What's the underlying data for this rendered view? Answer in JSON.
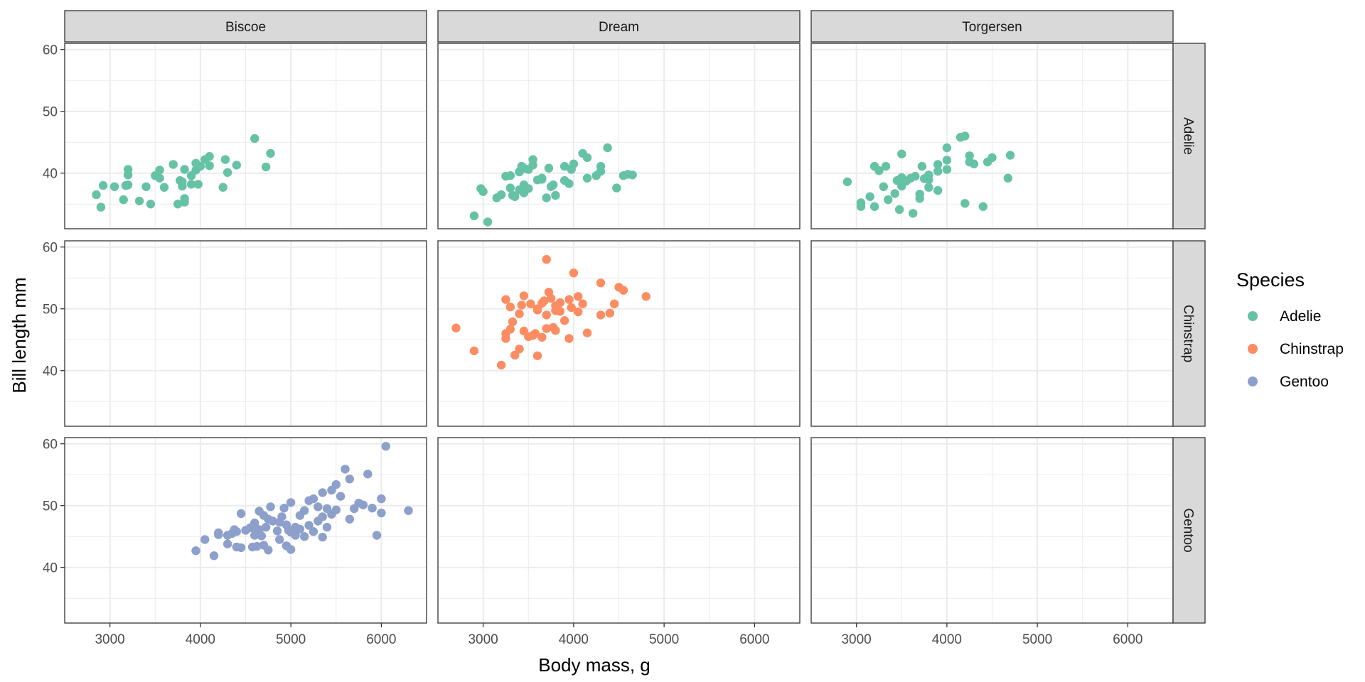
{
  "chart_data": {
    "type": "scatter",
    "title": "",
    "xlabel": "Body mass, g",
    "ylabel": "Bill length mm",
    "xlim": [
      2500,
      6500
    ],
    "ylim": [
      31,
      61
    ],
    "x_ticks": [
      3000,
      4000,
      5000,
      6000
    ],
    "y_ticks": [
      40,
      50,
      60
    ],
    "grid": true,
    "facet_columns": [
      "Biscoe",
      "Dream",
      "Torgersen"
    ],
    "facet_rows": [
      "Adelie",
      "Chinstrap",
      "Gentoo"
    ],
    "legend": {
      "title": "Species",
      "position": "right",
      "entries": [
        {
          "label": "Adelie",
          "color": "#66c2a5"
        },
        {
          "label": "Chinstrap",
          "color": "#fc8d62"
        },
        {
          "label": "Gentoo",
          "color": "#8da0cb"
        }
      ]
    },
    "panels": [
      {
        "island": "Biscoe",
        "species": "Adelie",
        "points": [
          [
            2850,
            36.5
          ],
          [
            2900,
            34.5
          ],
          [
            2925,
            38.0
          ],
          [
            3050,
            37.8
          ],
          [
            3150,
            35.7
          ],
          [
            3175,
            38.0
          ],
          [
            3200,
            40.6
          ],
          [
            3200,
            39.7
          ],
          [
            3200,
            38.1
          ],
          [
            3325,
            35.5
          ],
          [
            3400,
            37.8
          ],
          [
            3450,
            35.0
          ],
          [
            3500,
            39.6
          ],
          [
            3550,
            40.5
          ],
          [
            3550,
            39.2
          ],
          [
            3600,
            37.7
          ],
          [
            3700,
            41.4
          ],
          [
            3750,
            35.0
          ],
          [
            3775,
            38.8
          ],
          [
            3800,
            38.6
          ],
          [
            3800,
            37.9
          ],
          [
            3825,
            35.3
          ],
          [
            3825,
            35.9
          ],
          [
            3825,
            40.6
          ],
          [
            3900,
            38.2
          ],
          [
            3900,
            39.6
          ],
          [
            3950,
            41.6
          ],
          [
            3950,
            40.5
          ],
          [
            3975,
            38.2
          ],
          [
            4000,
            41.1
          ],
          [
            4050,
            42.2
          ],
          [
            4100,
            42.7
          ],
          [
            4100,
            41.2
          ],
          [
            4250,
            37.7
          ],
          [
            4275,
            42.2
          ],
          [
            4300,
            40.1
          ],
          [
            4400,
            41.3
          ],
          [
            4600,
            45.6
          ],
          [
            4725,
            41.0
          ],
          [
            4775,
            43.2
          ]
        ]
      },
      {
        "island": "Dream",
        "species": "Adelie",
        "points": [
          [
            2900,
            33.1
          ],
          [
            2975,
            37.5
          ],
          [
            3000,
            37.0
          ],
          [
            3050,
            32.1
          ],
          [
            3150,
            36.0
          ],
          [
            3200,
            36.5
          ],
          [
            3250,
            39.5
          ],
          [
            3300,
            37.6
          ],
          [
            3300,
            39.6
          ],
          [
            3325,
            36.4
          ],
          [
            3350,
            36.2
          ],
          [
            3400,
            37.3
          ],
          [
            3400,
            40.2
          ],
          [
            3425,
            41.1
          ],
          [
            3450,
            40.8
          ],
          [
            3450,
            38.1
          ],
          [
            3450,
            36.8
          ],
          [
            3500,
            40.6
          ],
          [
            3500,
            37.5
          ],
          [
            3550,
            42.2
          ],
          [
            3550,
            41.3
          ],
          [
            3600,
            38.9
          ],
          [
            3650,
            39.2
          ],
          [
            3700,
            36.0
          ],
          [
            3725,
            40.8
          ],
          [
            3750,
            37.8
          ],
          [
            3800,
            36.4
          ],
          [
            3900,
            38.8
          ],
          [
            3900,
            41.1
          ],
          [
            3950,
            38.3
          ],
          [
            3975,
            40.6
          ],
          [
            4000,
            41.5
          ],
          [
            4100,
            43.2
          ],
          [
            4150,
            42.5
          ],
          [
            4150,
            39.2
          ],
          [
            4250,
            39.6
          ],
          [
            4300,
            41.1
          ],
          [
            4300,
            40.3
          ],
          [
            4375,
            44.1
          ],
          [
            4475,
            37.6
          ],
          [
            4550,
            39.6
          ],
          [
            4600,
            39.8
          ],
          [
            4650,
            39.7
          ],
          [
            3650,
            39.0
          ],
          [
            3775,
            38.1
          ]
        ]
      },
      {
        "island": "Torgersen",
        "species": "Adelie",
        "points": [
          [
            2900,
            38.6
          ],
          [
            3050,
            34.6
          ],
          [
            3050,
            35.2
          ],
          [
            3150,
            36.2
          ],
          [
            3200,
            34.6
          ],
          [
            3200,
            41.1
          ],
          [
            3250,
            40.4
          ],
          [
            3300,
            37.8
          ],
          [
            3325,
            41.1
          ],
          [
            3350,
            35.7
          ],
          [
            3425,
            36.7
          ],
          [
            3450,
            38.8
          ],
          [
            3475,
            34.1
          ],
          [
            3500,
            43.1
          ],
          [
            3500,
            37.9
          ],
          [
            3500,
            39.3
          ],
          [
            3550,
            38.7
          ],
          [
            3600,
            39.2
          ],
          [
            3625,
            33.5
          ],
          [
            3650,
            39.5
          ],
          [
            3700,
            35.9
          ],
          [
            3700,
            36.6
          ],
          [
            3725,
            41.1
          ],
          [
            3750,
            39.1
          ],
          [
            3800,
            38.9
          ],
          [
            3800,
            39.7
          ],
          [
            3800,
            37.7
          ],
          [
            3900,
            40.3
          ],
          [
            3900,
            41.4
          ],
          [
            3900,
            37.2
          ],
          [
            4000,
            44.1
          ],
          [
            4000,
            40.6
          ],
          [
            4000,
            42.1
          ],
          [
            4150,
            45.8
          ],
          [
            4200,
            46.0
          ],
          [
            4200,
            35.1
          ],
          [
            4250,
            42.8
          ],
          [
            4250,
            41.8
          ],
          [
            4300,
            41.5
          ],
          [
            4400,
            34.6
          ],
          [
            4450,
            41.8
          ],
          [
            4500,
            42.5
          ],
          [
            4675,
            39.2
          ],
          [
            4700,
            42.9
          ]
        ]
      },
      {
        "island": "Dream",
        "species": "Chinstrap",
        "points": [
          [
            2700,
            46.9
          ],
          [
            2900,
            43.2
          ],
          [
            3200,
            40.9
          ],
          [
            3250,
            45.2
          ],
          [
            3250,
            46.0
          ],
          [
            3250,
            51.5
          ],
          [
            3300,
            50.3
          ],
          [
            3300,
            46.7
          ],
          [
            3325,
            47.9
          ],
          [
            3350,
            42.5
          ],
          [
            3400,
            43.5
          ],
          [
            3400,
            49.2
          ],
          [
            3425,
            50.6
          ],
          [
            3450,
            52.1
          ],
          [
            3450,
            46.4
          ],
          [
            3500,
            45.5
          ],
          [
            3525,
            50.8
          ],
          [
            3550,
            45.7
          ],
          [
            3575,
            46.0
          ],
          [
            3600,
            42.4
          ],
          [
            3600,
            49.8
          ],
          [
            3650,
            50.9
          ],
          [
            3650,
            45.4
          ],
          [
            3675,
            51.3
          ],
          [
            3700,
            46.8
          ],
          [
            3700,
            58.0
          ],
          [
            3700,
            49.0
          ],
          [
            3725,
            52.7
          ],
          [
            3750,
            51.7
          ],
          [
            3775,
            47.0
          ],
          [
            3800,
            46.5
          ],
          [
            3800,
            50.5
          ],
          [
            3800,
            49.7
          ],
          [
            3850,
            51.0
          ],
          [
            3900,
            48.1
          ],
          [
            3950,
            45.2
          ],
          [
            3950,
            51.5
          ],
          [
            3975,
            50.2
          ],
          [
            4000,
            55.8
          ],
          [
            4050,
            52.0
          ],
          [
            4050,
            49.5
          ],
          [
            4100,
            50.8
          ],
          [
            4150,
            46.1
          ],
          [
            4300,
            49.0
          ],
          [
            4300,
            54.2
          ],
          [
            4400,
            49.3
          ],
          [
            4450,
            50.8
          ],
          [
            4500,
            53.5
          ],
          [
            4550,
            53.0
          ],
          [
            4800,
            52.0
          ],
          [
            3600,
            50.0
          ],
          [
            3850,
            49.6
          ]
        ]
      },
      {
        "island": "Biscoe",
        "species": "Gentoo",
        "points": [
          [
            3950,
            42.7
          ],
          [
            4050,
            44.5
          ],
          [
            4150,
            41.9
          ],
          [
            4200,
            45.6
          ],
          [
            4200,
            45.3
          ],
          [
            4300,
            45.2
          ],
          [
            4300,
            43.8
          ],
          [
            4350,
            45.5
          ],
          [
            4375,
            46.1
          ],
          [
            4400,
            43.3
          ],
          [
            4400,
            45.8
          ],
          [
            4450,
            43.2
          ],
          [
            4450,
            48.7
          ],
          [
            4500,
            46.0
          ],
          [
            4550,
            46.4
          ],
          [
            4575,
            43.3
          ],
          [
            4600,
            47.2
          ],
          [
            4600,
            45.2
          ],
          [
            4625,
            43.4
          ],
          [
            4650,
            46.1
          ],
          [
            4650,
            49.1
          ],
          [
            4675,
            45.1
          ],
          [
            4700,
            48.4
          ],
          [
            4700,
            43.6
          ],
          [
            4725,
            46.5
          ],
          [
            4750,
            47.8
          ],
          [
            4750,
            42.8
          ],
          [
            4775,
            49.8
          ],
          [
            4800,
            47.5
          ],
          [
            4850,
            45.9
          ],
          [
            4875,
            44.5
          ],
          [
            4900,
            48.2
          ],
          [
            4925,
            49.6
          ],
          [
            4950,
            46.9
          ],
          [
            4950,
            43.5
          ],
          [
            5000,
            50.5
          ],
          [
            5000,
            45.7
          ],
          [
            5000,
            42.9
          ],
          [
            5050,
            46.5
          ],
          [
            5050,
            45.2
          ],
          [
            5100,
            48.4
          ],
          [
            5150,
            49.2
          ],
          [
            5200,
            50.8
          ],
          [
            5200,
            46.8
          ],
          [
            5250,
            51.1
          ],
          [
            5250,
            45.8
          ],
          [
            5300,
            49.8
          ],
          [
            5300,
            47.5
          ],
          [
            5350,
            52.1
          ],
          [
            5350,
            48.2
          ],
          [
            5400,
            49.5
          ],
          [
            5400,
            46.5
          ],
          [
            5450,
            52.5
          ],
          [
            5500,
            53.4
          ],
          [
            5500,
            49.3
          ],
          [
            5550,
            51.5
          ],
          [
            5600,
            55.9
          ],
          [
            5650,
            54.3
          ],
          [
            5700,
            49.5
          ],
          [
            5750,
            50.4
          ],
          [
            5800,
            50.1
          ],
          [
            5850,
            55.1
          ],
          [
            5900,
            49.6
          ],
          [
            5950,
            45.2
          ],
          [
            6000,
            51.1
          ],
          [
            6000,
            48.8
          ],
          [
            6050,
            59.6
          ],
          [
            6300,
            49.2
          ],
          [
            4625,
            46.2
          ],
          [
            4875,
            47.3
          ],
          [
            5100,
            46.2
          ],
          [
            5150,
            45.0
          ],
          [
            5450,
            48.6
          ],
          [
            5650,
            47.8
          ],
          [
            5350,
            44.9
          ],
          [
            4975,
            46.0
          ]
        ]
      }
    ]
  }
}
